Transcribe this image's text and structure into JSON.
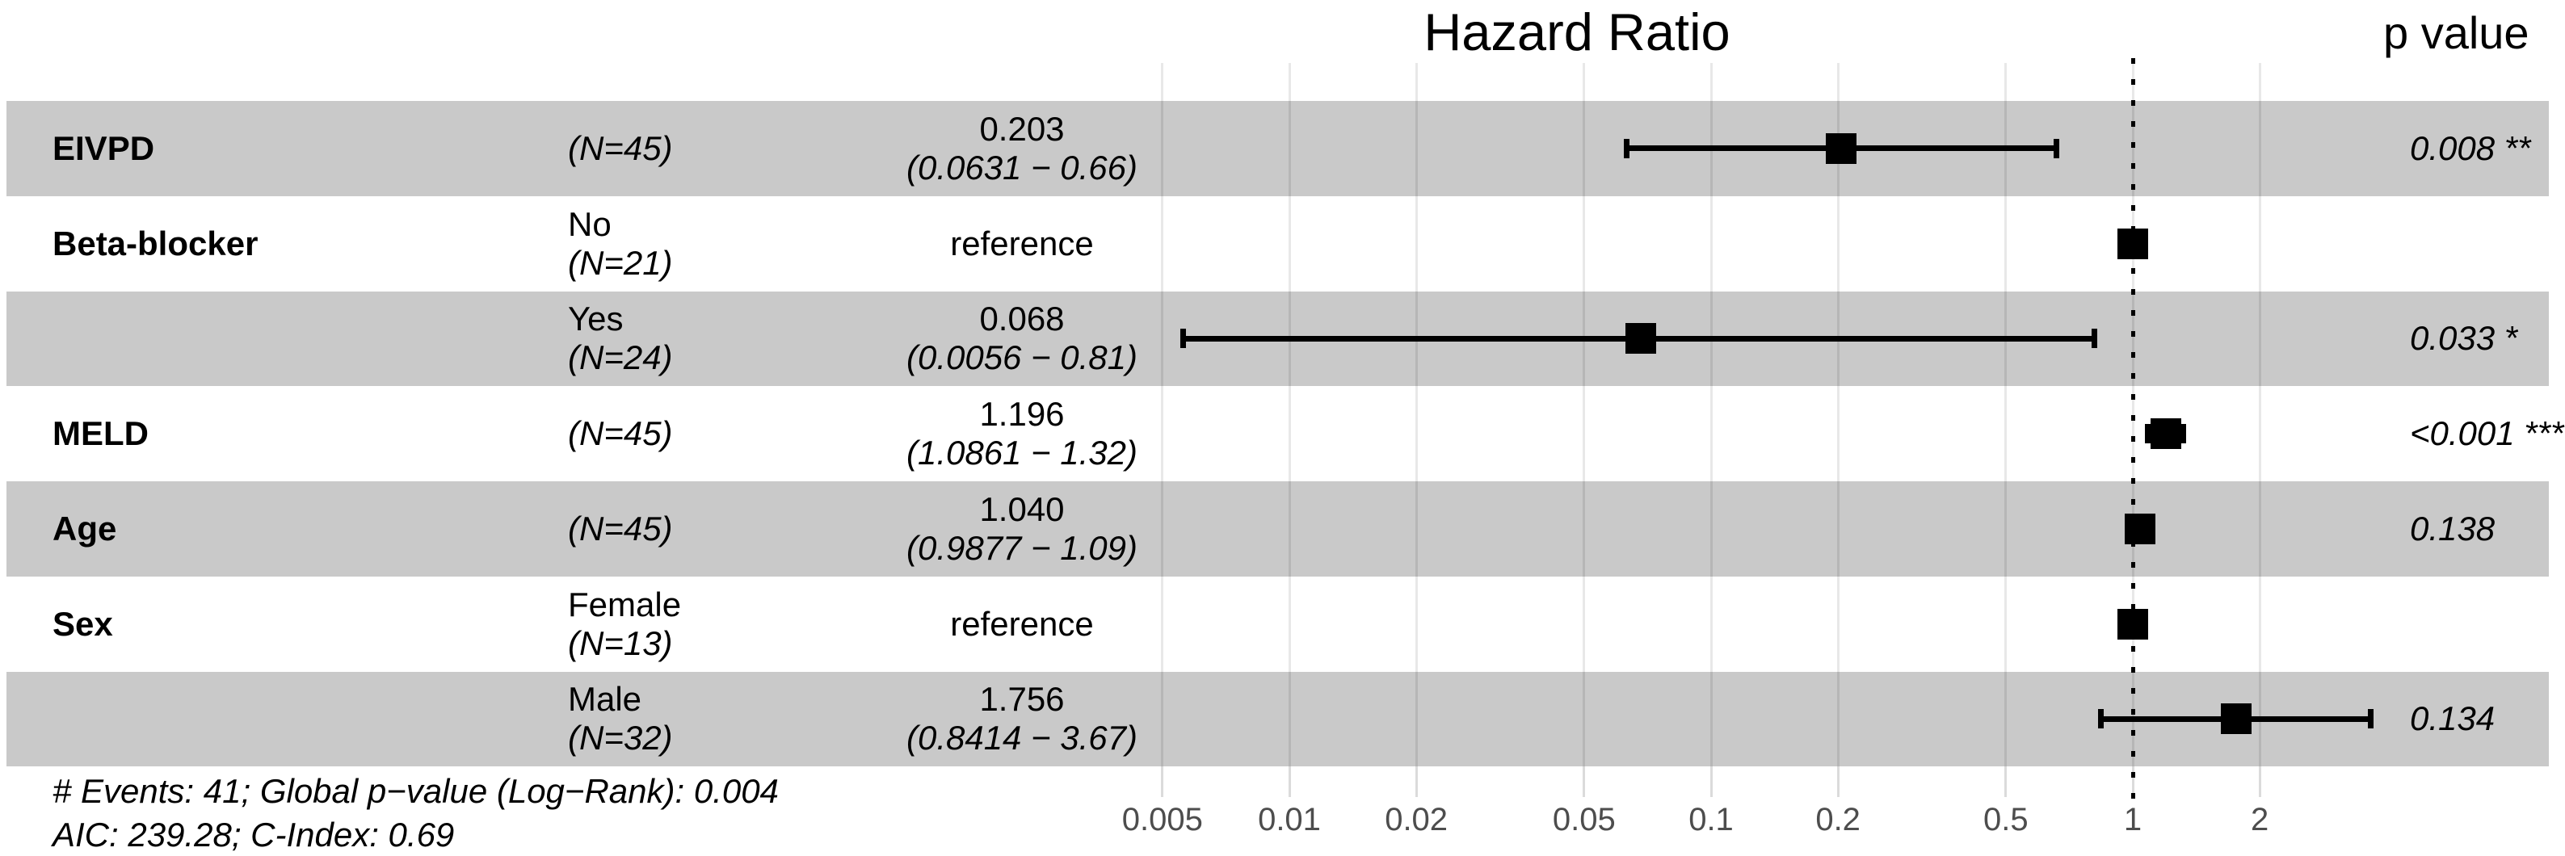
{
  "header": {
    "title": "Hazard Ratio",
    "p_value_header": "p value"
  },
  "chart_data": {
    "type": "forest",
    "title": "Hazard Ratio",
    "x_axis": {
      "scale": "log",
      "tick_labels": [
        "0.005",
        "0.01",
        "0.02",
        "0.05",
        "0.1",
        "0.2",
        "0.5",
        "1",
        "2"
      ],
      "tick_values": [
        0.005,
        0.01,
        0.02,
        0.05,
        0.1,
        0.2,
        0.5,
        1,
        2
      ],
      "reference_line": 1,
      "xlim": [
        0.004,
        4
      ]
    },
    "rows": [
      {
        "variable": "EIVPD",
        "level": "",
        "n": "(N=45)",
        "estimate": "0.203",
        "ci": "(0.0631 − 0.66)",
        "hr": 0.203,
        "lo": 0.0631,
        "hi": 0.66,
        "p": "0.008 **",
        "shaded": true,
        "reference": false
      },
      {
        "variable": "Beta-blocker",
        "level": "No",
        "n": "(N=21)",
        "estimate": "reference",
        "ci": "",
        "hr": 1,
        "lo": null,
        "hi": null,
        "p": "",
        "shaded": false,
        "reference": true
      },
      {
        "variable": "",
        "level": "Yes",
        "n": "(N=24)",
        "estimate": "0.068",
        "ci": "(0.0056 − 0.81)",
        "hr": 0.068,
        "lo": 0.0056,
        "hi": 0.81,
        "p": "0.033 *",
        "shaded": true,
        "reference": false
      },
      {
        "variable": "MELD",
        "level": "",
        "n": "(N=45)",
        "estimate": "1.196",
        "ci": "(1.0861 − 1.32)",
        "hr": 1.196,
        "lo": 1.0861,
        "hi": 1.32,
        "p": "<0.001 ***",
        "shaded": false,
        "reference": false
      },
      {
        "variable": "Age",
        "level": "",
        "n": "(N=45)",
        "estimate": "1.040",
        "ci": "(0.9877 − 1.09)",
        "hr": 1.04,
        "lo": 0.9877,
        "hi": 1.09,
        "p": "0.138",
        "shaded": true,
        "reference": false
      },
      {
        "variable": "Sex",
        "level": "Female",
        "n": "(N=13)",
        "estimate": "reference",
        "ci": "",
        "hr": 1,
        "lo": null,
        "hi": null,
        "p": "",
        "shaded": false,
        "reference": true
      },
      {
        "variable": "",
        "level": "Male",
        "n": "(N=32)",
        "estimate": "1.756",
        "ci": "(0.8414 − 3.67)",
        "hr": 1.756,
        "lo": 0.8414,
        "hi": 3.67,
        "p": "0.134",
        "shaded": true,
        "reference": false
      }
    ],
    "footnotes": [
      "# Events: 41; Global p−value (Log−Rank): 0.004",
      "AIC: 239.28; C-Index: 0.69"
    ],
    "colors": {
      "band": "#c9c9c9",
      "marker": "#000000",
      "tick_text": "#4d4d4d"
    }
  }
}
